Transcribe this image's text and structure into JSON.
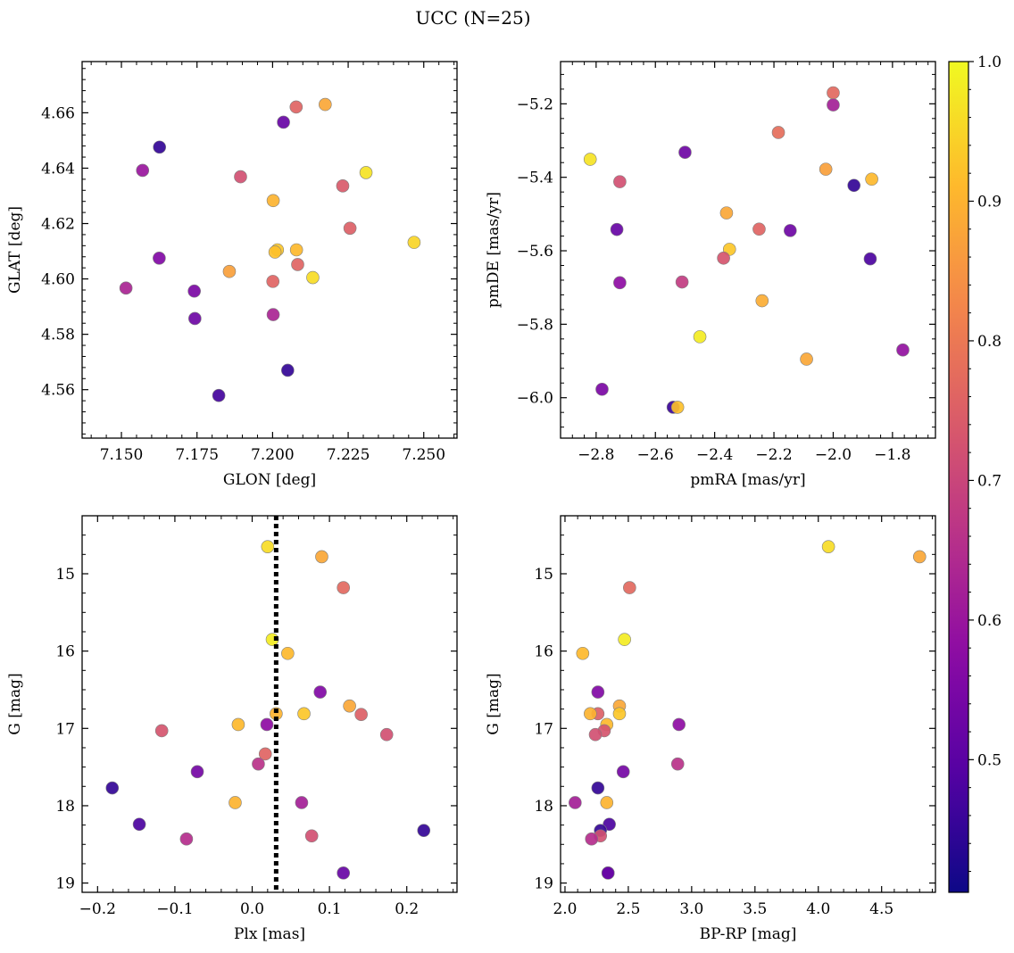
{
  "suptitle": "UCC (N=25)",
  "colors": {
    "marker_edge": "#7f7f7f",
    "vline": "#000000",
    "axis": "#000000",
    "colormap": "plasma"
  },
  "chart_data": [
    {
      "type": "scatter",
      "panel": "top-left",
      "xlabel": "GLON [deg]",
      "ylabel": "GLAT [deg]",
      "xlim": [
        7.137,
        7.261
      ],
      "ylim": [
        4.5425,
        4.6785
      ],
      "xticks": [
        7.15,
        7.175,
        7.2,
        7.225,
        7.25
      ],
      "xticklabels": [
        "7.150",
        "7.175",
        "7.200",
        "7.225",
        "7.250"
      ],
      "yticks": [
        4.56,
        4.58,
        4.6,
        4.62,
        4.64,
        4.66
      ],
      "yticklabels": [
        "4.56",
        "4.58",
        "4.60",
        "4.62",
        "4.64",
        "4.66"
      ],
      "x": [
        7.2174,
        7.2078,
        7.2036,
        7.1626,
        7.157,
        7.2309,
        7.1894,
        7.2232,
        7.2002,
        7.2256,
        7.2079,
        7.2016,
        7.2008,
        7.1625,
        7.2083,
        7.1857,
        7.2133,
        7.2001,
        7.1515,
        7.1741,
        7.2002,
        7.1743,
        7.205,
        7.1822,
        7.2468
      ],
      "y": [
        4.663,
        4.6621,
        4.6566,
        4.6476,
        4.6392,
        4.6384,
        4.6369,
        4.6336,
        4.6283,
        4.6183,
        4.6105,
        4.6105,
        4.6097,
        4.6075,
        4.6052,
        4.6027,
        4.6005,
        4.5991,
        4.5967,
        4.5956,
        4.5871,
        4.5857,
        4.567,
        4.5579,
        4.6132
      ],
      "c": [
        0.88,
        0.76,
        0.52,
        0.45,
        0.6,
        0.97,
        0.72,
        0.74,
        0.9,
        0.75,
        0.91,
        0.93,
        0.92,
        0.56,
        0.76,
        0.87,
        0.96,
        0.76,
        0.63,
        0.55,
        0.63,
        0.53,
        0.45,
        0.47,
        0.95
      ]
    },
    {
      "type": "scatter",
      "panel": "top-right",
      "xlabel": "pmRA [mas/yr]",
      "ylabel": "pmDE [mas/yr]",
      "xlim": [
        -2.92,
        -1.655
      ],
      "ylim": [
        -6.11,
        -5.085
      ],
      "xticks": [
        -2.8,
        -2.6,
        -2.4,
        -2.2,
        -2.0,
        -1.8
      ],
      "xticklabels": [
        "−2.8",
        "−2.6",
        "−2.4",
        "−2.2",
        "−2.0",
        "−1.8"
      ],
      "yticks": [
        -6.0,
        -5.8,
        -5.6,
        -5.4,
        -5.2
      ],
      "yticklabels": [
        "−6.0",
        "−5.8",
        "−5.6",
        "−5.4",
        "−5.2"
      ],
      "x": [
        -2.0,
        -2.0,
        -2.185,
        -2.82,
        -2.025,
        -1.87,
        -2.72,
        -2.5,
        -1.93,
        -2.36,
        -2.73,
        -2.25,
        -2.145,
        -2.35,
        -2.37,
        -1.875,
        -2.72,
        -2.51,
        -2.24,
        -2.45,
        -2.09,
        -1.765,
        -2.78,
        -2.54,
        -2.525
      ],
      "y": [
        -5.17,
        -5.203,
        -5.278,
        -5.351,
        -5.378,
        -5.405,
        -5.412,
        -5.332,
        -5.422,
        -5.497,
        -5.542,
        -5.541,
        -5.545,
        -5.596,
        -5.62,
        -5.622,
        -5.687,
        -5.685,
        -5.736,
        -5.834,
        -5.895,
        -5.87,
        -5.977,
        -6.026,
        -6.026
      ],
      "c": [
        0.77,
        0.62,
        0.78,
        0.97,
        0.87,
        0.91,
        0.72,
        0.53,
        0.45,
        0.88,
        0.52,
        0.76,
        0.53,
        0.93,
        0.73,
        0.48,
        0.58,
        0.68,
        0.89,
        0.98,
        0.88,
        0.59,
        0.55,
        0.46,
        0.92
      ]
    },
    {
      "type": "scatter",
      "panel": "bottom-left",
      "xlabel": "Plx [mas]",
      "ylabel": "G [mag]",
      "xlim": [
        -0.22,
        0.265
      ],
      "ylim": [
        19.12,
        14.25
      ],
      "y_inverted": true,
      "vline": 0.031,
      "xticks": [
        -0.2,
        -0.1,
        0.0,
        0.1,
        0.2
      ],
      "xticklabels": [
        "−0.2",
        "−0.1",
        "0.0",
        "0.1",
        "0.2"
      ],
      "yticks": [
        15,
        16,
        17,
        18,
        19
      ],
      "yticklabels": [
        "15",
        "16",
        "17",
        "18",
        "19"
      ],
      "x": [
        0.02,
        0.09,
        0.118,
        0.026,
        0.046,
        0.088,
        0.126,
        0.141,
        0.031,
        0.067,
        -0.018,
        0.019,
        -0.117,
        0.174,
        0.017,
        0.008,
        -0.071,
        -0.181,
        -0.022,
        0.064,
        -0.146,
        0.222,
        0.077,
        -0.085,
        0.118
      ],
      "y": [
        14.65,
        14.78,
        15.18,
        15.85,
        16.03,
        16.53,
        16.71,
        16.82,
        16.81,
        16.81,
        16.95,
        16.95,
        17.03,
        17.08,
        17.33,
        17.46,
        17.56,
        17.77,
        17.96,
        17.96,
        18.24,
        18.32,
        18.39,
        18.43,
        18.87
      ],
      "c": [
        0.96,
        0.88,
        0.77,
        0.98,
        0.91,
        0.56,
        0.88,
        0.75,
        0.9,
        0.93,
        0.91,
        0.58,
        0.73,
        0.72,
        0.76,
        0.66,
        0.54,
        0.45,
        0.9,
        0.62,
        0.48,
        0.45,
        0.72,
        0.65,
        0.52
      ]
    },
    {
      "type": "scatter",
      "panel": "bottom-right",
      "xlabel": "BP-RP [mag]",
      "ylabel": "G [mag]",
      "xlim": [
        1.965,
        4.925
      ],
      "ylim": [
        19.12,
        14.25
      ],
      "y_inverted": true,
      "xticks": [
        2.0,
        2.5,
        3.0,
        3.5,
        4.0,
        4.5
      ],
      "xticklabels": [
        "2.0",
        "2.5",
        "3.0",
        "3.5",
        "4.0",
        "4.5"
      ],
      "yticks": [
        15,
        16,
        17,
        18,
        19
      ],
      "yticklabels": [
        "15",
        "16",
        "17",
        "18",
        "19"
      ],
      "x": [
        4.08,
        4.8,
        2.51,
        2.47,
        2.14,
        2.26,
        2.43,
        2.26,
        2.2,
        2.43,
        2.33,
        2.9,
        2.31,
        2.24,
        2.89,
        2.46,
        2.26,
        2.33,
        2.08,
        2.35,
        2.28,
        2.28,
        2.21,
        2.34,
        2.34
      ],
      "y": [
        14.65,
        14.78,
        15.18,
        15.85,
        16.03,
        16.53,
        16.71,
        16.81,
        16.81,
        16.81,
        16.95,
        16.95,
        17.03,
        17.08,
        17.46,
        17.56,
        17.77,
        17.96,
        17.96,
        18.24,
        18.32,
        18.39,
        18.43,
        18.87,
        18.87
      ],
      "c": [
        0.96,
        0.88,
        0.77,
        0.98,
        0.91,
        0.56,
        0.88,
        0.75,
        0.9,
        0.93,
        0.91,
        0.58,
        0.73,
        0.72,
        0.66,
        0.54,
        0.45,
        0.9,
        0.62,
        0.48,
        0.45,
        0.72,
        0.65,
        0.52,
        0.52
      ]
    }
  ],
  "colorbar": {
    "cmap": "plasma",
    "vmin": 0.405,
    "vmax": 1.0,
    "ticks": [
      0.5,
      0.6,
      0.7,
      0.8,
      0.9,
      1.0
    ],
    "ticklabels": [
      "0.5",
      "0.6",
      "0.7",
      "0.8",
      "0.9",
      "1.0"
    ]
  }
}
